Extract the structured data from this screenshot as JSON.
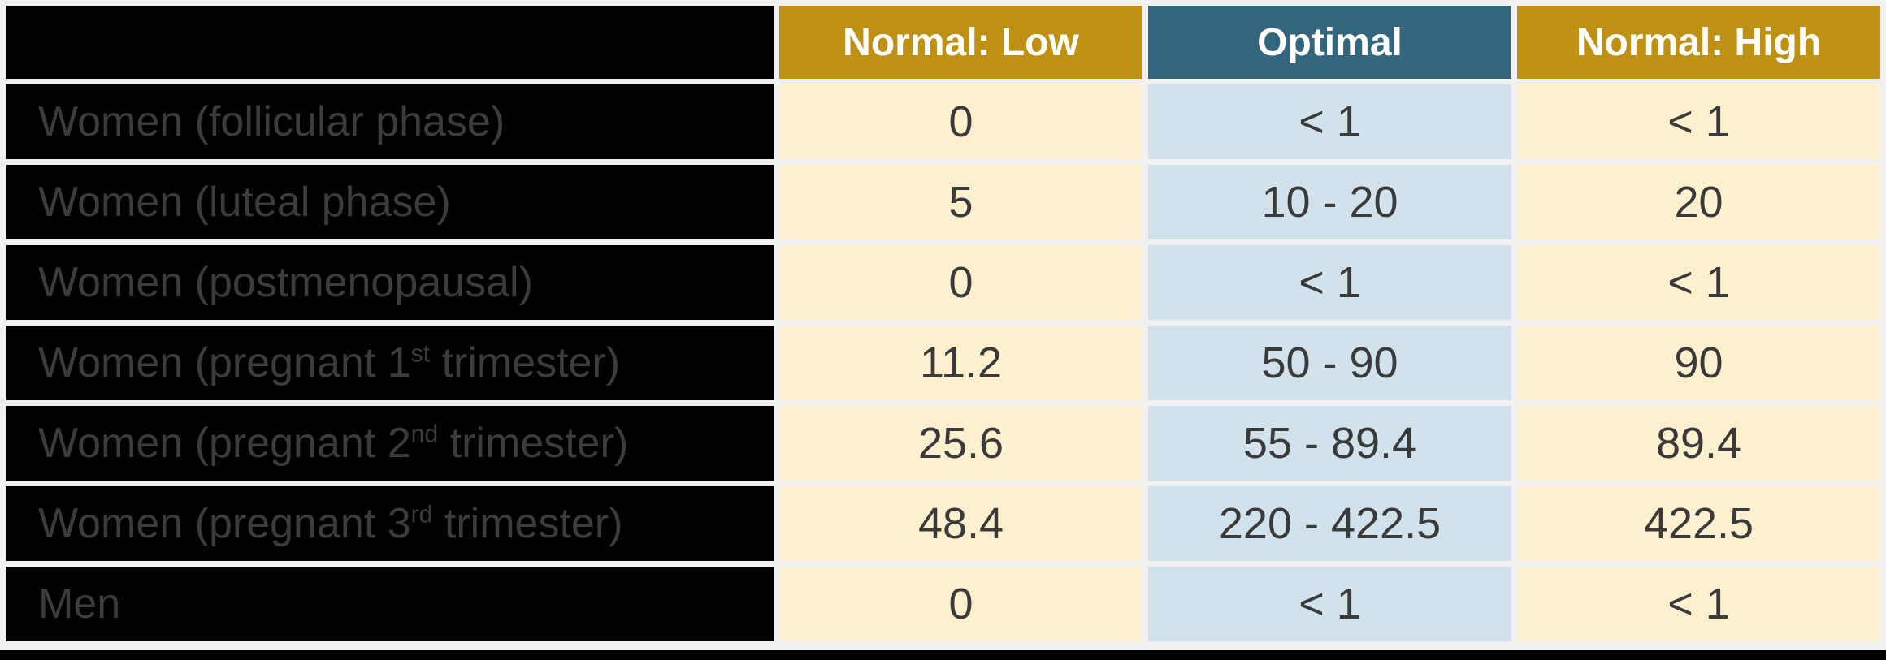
{
  "table": {
    "header": {
      "normal_low": "Normal: Low",
      "optimal": "Optimal",
      "normal_high": "Normal: High"
    },
    "rows": [
      {
        "label_pre": "Women (follicular phase)",
        "label_sup": "",
        "label_post": "",
        "normal_low": "0",
        "optimal": "< 1",
        "normal_high": "< 1"
      },
      {
        "label_pre": "Women (luteal phase)",
        "label_sup": "",
        "label_post": "",
        "normal_low": "5",
        "optimal": "10 - 20",
        "normal_high": "20"
      },
      {
        "label_pre": "Women (postmenopausal)",
        "label_sup": "",
        "label_post": "",
        "normal_low": "0",
        "optimal": "< 1",
        "normal_high": "< 1"
      },
      {
        "label_pre": "Women (pregnant 1",
        "label_sup": "st",
        "label_post": " trimester)",
        "normal_low": "11.2",
        "optimal": "50 - 90",
        "normal_high": "90"
      },
      {
        "label_pre": "Women (pregnant 2",
        "label_sup": "nd",
        "label_post": " trimester)",
        "normal_low": "25.6",
        "optimal": "55 - 89.4",
        "normal_high": "89.4"
      },
      {
        "label_pre": "Women (pregnant 3",
        "label_sup": "rd",
        "label_post": " trimester)",
        "normal_low": "48.4",
        "optimal": "220 - 422.5",
        "normal_high": "422.5"
      },
      {
        "label_pre": "Men",
        "label_sup": "",
        "label_post": "",
        "normal_low": "0",
        "optimal": "< 1",
        "normal_high": "< 1"
      }
    ]
  },
  "colors": {
    "gold": "#BE9114",
    "teal": "#33657C",
    "cream": "#FCF0CF",
    "blue": "#D2E2EC",
    "labelBg": "#000000",
    "labelText": "#3C3C3C",
    "valueText": "#3A3A3A",
    "headerText": "#FFFFFF",
    "pageBg": "#F1F1F1",
    "divider": "#000000"
  },
  "chart_data": {
    "type": "table",
    "columns": [
      "",
      "Normal: Low",
      "Optimal",
      "Normal: High"
    ],
    "rows": [
      [
        "Women (follicular phase)",
        "0",
        "< 1",
        "< 1"
      ],
      [
        "Women (luteal phase)",
        "5",
        "10 - 20",
        "20"
      ],
      [
        "Women (postmenopausal)",
        "0",
        "< 1",
        "< 1"
      ],
      [
        "Women (pregnant 1st trimester)",
        "11.2",
        "50 - 90",
        "90"
      ],
      [
        "Women (pregnant 2nd trimester)",
        "25.6",
        "55 - 89.4",
        "89.4"
      ],
      [
        "Women (pregnant 3rd trimester)",
        "48.4",
        "220 - 422.5",
        "422.5"
      ],
      [
        "Men",
        "0",
        "< 1",
        "< 1"
      ]
    ]
  }
}
